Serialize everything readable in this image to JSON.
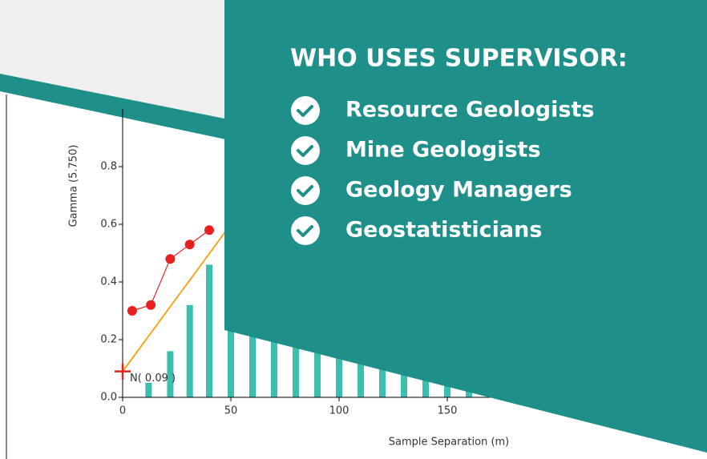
{
  "panel": {
    "title": "WHO USES SUPERVISOR:",
    "items": [
      "Resource Geologists",
      "Mine Geologists",
      "Geology Managers",
      "Geostatisticians"
    ]
  },
  "chart_data": {
    "type": "variogram",
    "xlabel": "Sample Separation (m)",
    "ylabel": "Gamma (5.750)",
    "annotation": "N( 0.09 )",
    "nugget": 0.09,
    "xlim": [
      0,
      170
    ],
    "ylim": [
      0,
      1.0
    ],
    "xticks": [
      0,
      50,
      100,
      150
    ],
    "yticks": [
      {
        "value": 0,
        "label": "0.0"
      },
      0.2,
      0.4,
      0.6,
      0.8
    ],
    "bars": {
      "color": "#3bbfae",
      "x": [
        12,
        22,
        31,
        40,
        50,
        60,
        70,
        80,
        90,
        100,
        110,
        120,
        130,
        140,
        150,
        160
      ],
      "values": [
        0.05,
        0.16,
        0.32,
        0.46,
        0.5,
        0.5,
        0.5,
        0.5,
        0.5,
        0.5,
        0.5,
        0.5,
        0.5,
        0.5,
        0.5,
        0.5
      ]
    },
    "points": {
      "color": "#e8201f",
      "x": [
        4.4,
        13,
        22,
        31,
        40
      ],
      "values": [
        0.3,
        0.32,
        0.48,
        0.53,
        0.58
      ]
    },
    "model": {
      "color": "#f5a623",
      "x": [
        0,
        50
      ],
      "values": [
        0.09,
        0.6
      ]
    }
  }
}
